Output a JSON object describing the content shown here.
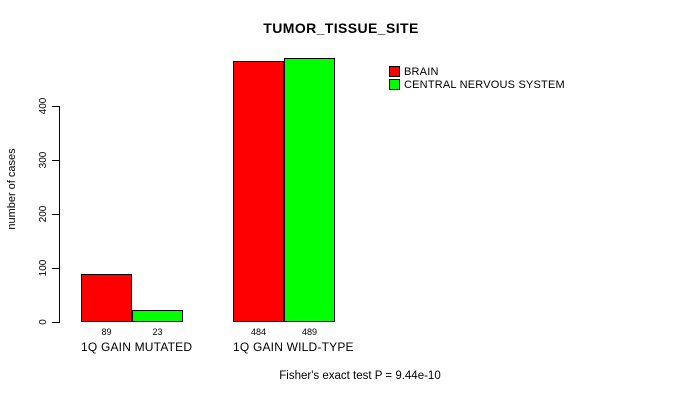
{
  "window": {
    "background": "#FFFFFF"
  },
  "chart_data": {
    "type": "bar",
    "title": "TUMOR_TISSUE_SITE",
    "ylabel": "number of cases",
    "xlabel": "",
    "ylim": [
      0,
      489
    ],
    "yticks": [
      0,
      100,
      200,
      300,
      400
    ],
    "categories": [
      "1Q GAIN MUTATED",
      "1Q GAIN WILD-TYPE"
    ],
    "series": [
      {
        "name": "BRAIN",
        "color": "#FF0000",
        "values": [
          89,
          484
        ]
      },
      {
        "name": "CENTRAL NERVOUS SYSTEM",
        "color": "#00FF00",
        "values": [
          23,
          489
        ]
      }
    ],
    "bar_border_color": "#000000",
    "show_value_labels": true,
    "grid": false,
    "legend_position": "top-right",
    "annotation": "Fisher's exact test P = 9.44e-10"
  }
}
